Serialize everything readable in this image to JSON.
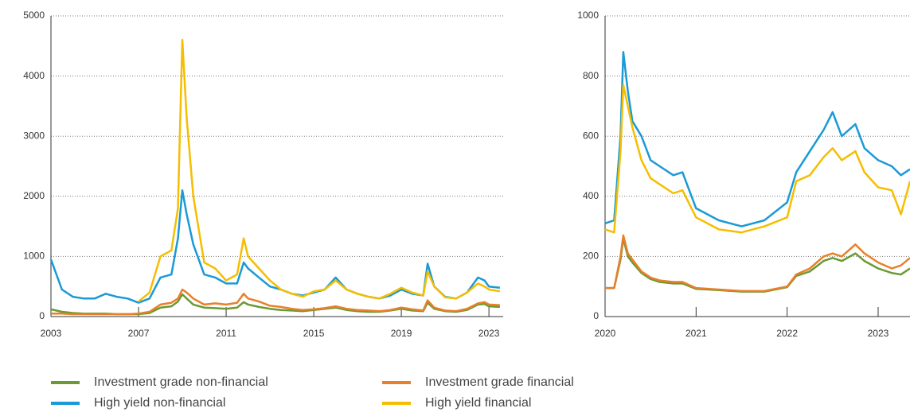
{
  "chart_data": [
    {
      "type": "line",
      "x": [
        2003,
        2003.5,
        2004,
        2004.5,
        2005,
        2005.5,
        2006,
        2006.5,
        2007,
        2007.5,
        2008,
        2008.5,
        2008.8,
        2009.0,
        2009.2,
        2009.5,
        2010,
        2010.5,
        2011,
        2011.5,
        2011.8,
        2012,
        2012.5,
        2013,
        2013.5,
        2014,
        2014.5,
        2015,
        2015.5,
        2016,
        2016.5,
        2017,
        2017.5,
        2018,
        2018.5,
        2019,
        2019.5,
        2020,
        2020.2,
        2020.5,
        2021,
        2021.5,
        2022,
        2022.5,
        2022.8,
        2023,
        2023.5
      ],
      "xlim": [
        2003,
        2023.65
      ],
      "xticks": [
        2003,
        2007,
        2011,
        2015,
        2019,
        2023
      ],
      "ylim": [
        0,
        5000
      ],
      "yticks": [
        0,
        1000,
        2000,
        3000,
        4000,
        5000
      ],
      "grid": true,
      "series": [
        {
          "name": "Investment grade non-financial",
          "color": "#6a9a32",
          "values": [
            120,
            80,
            60,
            50,
            50,
            50,
            40,
            40,
            40,
            60,
            150,
            170,
            250,
            370,
            300,
            200,
            150,
            140,
            130,
            150,
            240,
            200,
            160,
            130,
            110,
            100,
            90,
            110,
            130,
            150,
            110,
            90,
            80,
            80,
            100,
            130,
            100,
            90,
            230,
            130,
            90,
            80,
            110,
            200,
            210,
            170,
            160
          ]
        },
        {
          "name": "High yield non-financial",
          "color": "#1a9ad6",
          "values": [
            950,
            450,
            330,
            300,
            300,
            380,
            330,
            300,
            230,
            300,
            650,
            700,
            1300,
            2100,
            1700,
            1200,
            700,
            650,
            550,
            550,
            900,
            800,
            650,
            500,
            450,
            380,
            350,
            400,
            450,
            650,
            450,
            380,
            330,
            300,
            350,
            450,
            380,
            350,
            880,
            500,
            330,
            300,
            400,
            650,
            600,
            500,
            480
          ]
        },
        {
          "name": "Investment grade financial",
          "color": "#e8802a",
          "values": [
            50,
            50,
            40,
            40,
            40,
            40,
            40,
            40,
            50,
            80,
            200,
            230,
            300,
            450,
            400,
            300,
            200,
            220,
            200,
            230,
            380,
            300,
            250,
            180,
            160,
            130,
            110,
            120,
            140,
            170,
            130,
            110,
            100,
            90,
            110,
            150,
            120,
            100,
            270,
            150,
            100,
            90,
            130,
            220,
            240,
            200,
            190
          ]
        },
        {
          "name": "High yield financial",
          "color": "#f5be00",
          "values": [
            null,
            null,
            null,
            null,
            null,
            null,
            null,
            null,
            250,
            400,
            1000,
            1100,
            1800,
            4600,
            3300,
            2000,
            900,
            800,
            600,
            700,
            1300,
            1000,
            800,
            600,
            450,
            380,
            330,
            420,
            450,
            600,
            450,
            380,
            330,
            300,
            380,
            480,
            400,
            350,
            750,
            500,
            320,
            300,
            400,
            550,
            500,
            450,
            420
          ]
        }
      ]
    },
    {
      "type": "line",
      "x": [
        2020.0,
        2020.1,
        2020.17,
        2020.2,
        2020.25,
        2020.3,
        2020.4,
        2020.5,
        2020.6,
        2020.75,
        2020.85,
        2021.0,
        2021.25,
        2021.5,
        2021.75,
        2022.0,
        2022.1,
        2022.25,
        2022.4,
        2022.5,
        2022.6,
        2022.75,
        2022.85,
        2023.0,
        2023.15,
        2023.25,
        2023.35
      ],
      "xlim": [
        2020,
        2023.35
      ],
      "xticks": [
        2020,
        2021,
        2022,
        2023
      ],
      "ylim": [
        0,
        1000
      ],
      "yticks": [
        0,
        200,
        400,
        600,
        800,
        1000
      ],
      "grid": true,
      "series": [
        {
          "color": "#6a9a32",
          "values": [
            95,
            95,
            190,
            260,
            200,
            180,
            145,
            125,
            115,
            110,
            110,
            92,
            88,
            83,
            83,
            98,
            135,
            150,
            185,
            195,
            185,
            210,
            185,
            160,
            145,
            140,
            160
          ]
        },
        {
          "color": "#1a9ad6",
          "values": [
            310,
            320,
            600,
            880,
            750,
            650,
            600,
            520,
            500,
            470,
            480,
            360,
            320,
            300,
            320,
            380,
            480,
            550,
            620,
            680,
            600,
            640,
            560,
            520,
            500,
            470,
            490
          ]
        },
        {
          "color": "#e8802a",
          "values": [
            95,
            95,
            200,
            270,
            210,
            190,
            150,
            130,
            120,
            115,
            115,
            95,
            90,
            85,
            85,
            100,
            140,
            160,
            200,
            210,
            200,
            240,
            210,
            180,
            160,
            170,
            195
          ]
        },
        {
          "color": "#f5be00",
          "values": [
            290,
            280,
            550,
            770,
            700,
            630,
            520,
            460,
            440,
            410,
            420,
            330,
            290,
            280,
            300,
            330,
            450,
            470,
            530,
            560,
            520,
            550,
            480,
            430,
            420,
            340,
            450
          ]
        }
      ]
    }
  ]
}
